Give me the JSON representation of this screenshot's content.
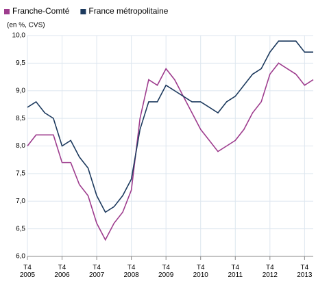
{
  "chart_data": {
    "type": "line",
    "subtitle": "(en %, CVS)",
    "categories": [
      "T4\n2005",
      null,
      null,
      null,
      "T4\n2006",
      null,
      null,
      null,
      "T4\n2007",
      null,
      null,
      null,
      "T4\n2008",
      null,
      null,
      null,
      "T4\n2009",
      null,
      null,
      null,
      "T4\n2010",
      null,
      null,
      null,
      "T4\n2011",
      null,
      null,
      null,
      "T4\n2012",
      null,
      null,
      null,
      "T4\n2013",
      null
    ],
    "series": [
      {
        "name": "Franche-Comté",
        "color": "#9e3d8e",
        "values": [
          8.0,
          8.2,
          8.2,
          8.2,
          7.7,
          7.7,
          7.3,
          7.1,
          6.6,
          6.3,
          6.6,
          6.8,
          7.2,
          8.5,
          9.2,
          9.1,
          9.4,
          9.2,
          8.9,
          8.6,
          8.3,
          8.1,
          7.9,
          8.0,
          8.1,
          8.3,
          8.6,
          8.8,
          9.3,
          9.5,
          9.4,
          9.3,
          9.1,
          9.2
        ]
      },
      {
        "name": "France métropolitaine",
        "color": "#1d3a5e",
        "values": [
          8.7,
          8.8,
          8.6,
          8.5,
          8.0,
          8.1,
          7.8,
          7.6,
          7.1,
          6.8,
          6.9,
          7.1,
          7.4,
          8.3,
          8.8,
          8.8,
          9.1,
          9.0,
          8.9,
          8.8,
          8.8,
          8.7,
          8.6,
          8.8,
          8.9,
          9.1,
          9.3,
          9.4,
          9.7,
          9.9,
          9.9,
          9.9,
          9.7,
          9.7
        ]
      }
    ],
    "ylim": [
      6.0,
      10.0
    ],
    "yticks": [
      {
        "value": 6.0,
        "label": "6,0"
      },
      {
        "value": 6.5,
        "label": "6,5"
      },
      {
        "value": 7.0,
        "label": "7,0"
      },
      {
        "value": 7.5,
        "label": "7,5"
      },
      {
        "value": 8.0,
        "label": "8,0"
      },
      {
        "value": 8.5,
        "label": "8,5"
      },
      {
        "value": 9.0,
        "label": "9,0"
      },
      {
        "value": 9.5,
        "label": "9,5"
      },
      {
        "value": 10.0,
        "label": "10,0"
      }
    ],
    "grid": true
  }
}
